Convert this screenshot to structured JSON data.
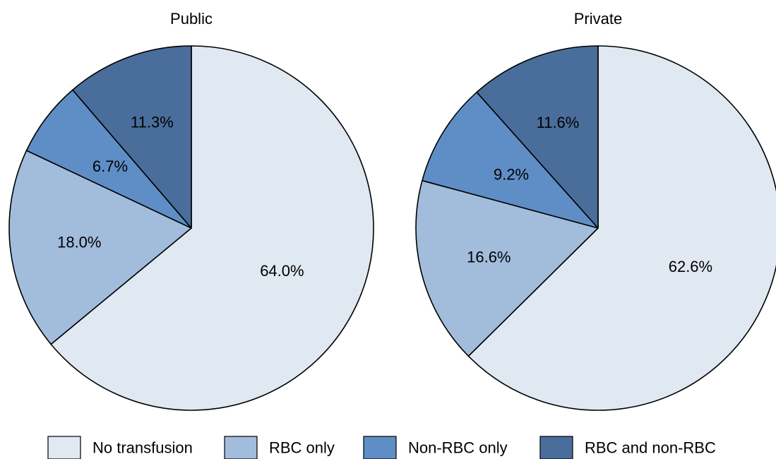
{
  "colors": {
    "No transfusion": "#e0e8f2",
    "RBC only": "#a2bcdc",
    "Non-RBC only": "#5f8ec6",
    "RBC and non-RBC": "#4a6e9c"
  },
  "legend": [
    "No transfusion",
    "RBC only",
    "Non-RBC only",
    "RBC and non-RBC"
  ],
  "chart_data": [
    {
      "type": "pie",
      "title": "Public",
      "categories": [
        "No transfusion",
        "RBC only",
        "Non-RBC only",
        "RBC and non-RBC"
      ],
      "values": [
        64.0,
        18.0,
        6.7,
        11.3
      ],
      "labels": [
        "64.0%",
        "18.0%",
        "6.7%",
        "11.3%"
      ],
      "start": "12 o'clock",
      "direction": "clockwise",
      "legend_position": "bottom"
    },
    {
      "type": "pie",
      "title": "Private",
      "categories": [
        "No transfusion",
        "RBC only",
        "Non-RBC only",
        "RBC and non-RBC"
      ],
      "values": [
        62.6,
        16.6,
        9.2,
        11.6
      ],
      "labels": [
        "62.6%",
        "16.6%",
        "9.2%",
        "11.6%"
      ],
      "start": "12 o'clock",
      "direction": "clockwise",
      "legend_position": "bottom"
    }
  ]
}
